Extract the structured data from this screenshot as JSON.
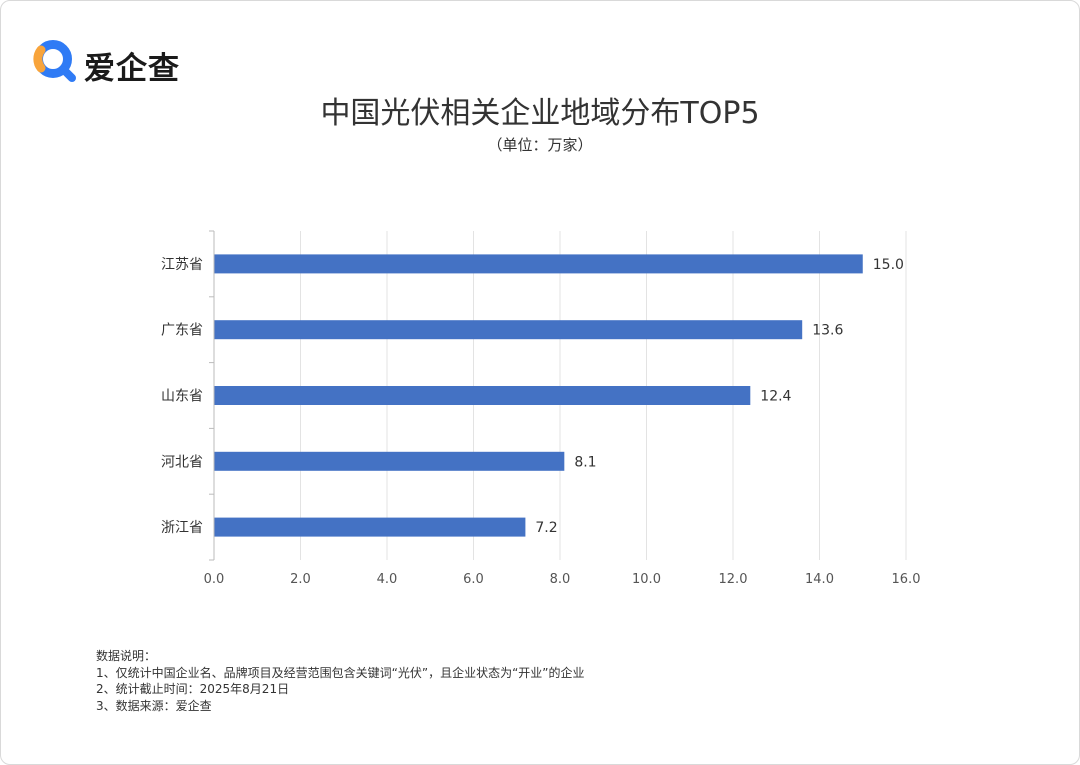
{
  "brand": {
    "name": "爱企查",
    "logo_icon": "search-magnifier-logo"
  },
  "colors": {
    "bar": "#4472C4",
    "grid": "#e3e3e3",
    "text": "#333333",
    "logo_blue": "#2F7BF5",
    "logo_orange": "#F8A43B"
  },
  "chart_data": {
    "type": "bar",
    "orientation": "horizontal",
    "title": "中国光伏相关企业地域分布TOP5",
    "subtitle": "（单位：万家）",
    "categories": [
      "江苏省",
      "广东省",
      "山东省",
      "河北省",
      "浙江省"
    ],
    "values": [
      15.0,
      13.6,
      12.4,
      8.1,
      7.2
    ],
    "value_labels": [
      "15.0",
      "13.6",
      "12.4",
      "8.1",
      "7.2"
    ],
    "xlim": [
      0,
      16
    ],
    "x_ticks": [
      "0.0",
      "2.0",
      "4.0",
      "6.0",
      "8.0",
      "10.0",
      "12.0",
      "14.0",
      "16.0"
    ],
    "grid": true,
    "legend": "none",
    "unit": "万家"
  },
  "notes": {
    "heading": "数据说明：",
    "items": [
      "1、仅统计中国企业名、品牌项目及经营范围包含关键词“光伏”，且企业状态为“开业”的企业",
      "2、统计截止时间：2025年8月21日",
      "3、数据来源：爱企查"
    ]
  }
}
